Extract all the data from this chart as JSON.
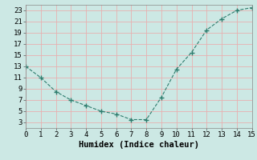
{
  "x": [
    0,
    1,
    2,
    3,
    4,
    5,
    6,
    7,
    8,
    9,
    10,
    11,
    12,
    13,
    14,
    15
  ],
  "y": [
    13,
    11,
    8.5,
    7,
    6,
    5,
    4.5,
    3.5,
    3.5,
    7.5,
    12.5,
    15.5,
    19.5,
    21.5,
    23,
    23.5
  ],
  "xlabel": "Humidex (Indice chaleur)",
  "xlim": [
    0,
    15
  ],
  "ylim": [
    2,
    24
  ],
  "yticks": [
    3,
    5,
    7,
    9,
    11,
    13,
    15,
    17,
    19,
    21,
    23
  ],
  "xticks": [
    0,
    1,
    2,
    3,
    4,
    5,
    6,
    7,
    8,
    9,
    10,
    11,
    12,
    13,
    14,
    15
  ],
  "line_color": "#2e7d6e",
  "marker_color": "#2e7d6e",
  "bg_color": "#cce8e4",
  "grid_color": "#e8b0b0",
  "xlabel_fontsize": 7.5,
  "tick_fontsize": 6.5
}
